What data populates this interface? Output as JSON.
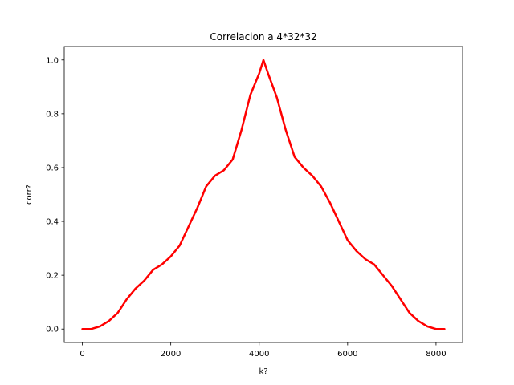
{
  "chart_data": {
    "type": "line",
    "title": "Correlacion a 4*32*32",
    "xlabel": "k?",
    "ylabel": "corr?",
    "xlim": [
      -410,
      8601
    ],
    "ylim": [
      -0.05,
      1.05
    ],
    "xticks": [
      0,
      2000,
      4000,
      6000,
      8000
    ],
    "xtick_labels": [
      "0",
      "2000",
      "4000",
      "6000",
      "8000"
    ],
    "yticks": [
      0.0,
      0.2,
      0.4,
      0.6,
      0.8,
      1.0
    ],
    "ytick_labels": [
      "0.0",
      "0.2",
      "0.4",
      "0.6",
      "0.8",
      "1.0"
    ],
    "grid": false,
    "series": [
      {
        "color": "#ff0000",
        "x": [
          0,
          200,
          400,
          600,
          800,
          1000,
          1200,
          1400,
          1600,
          1800,
          2000,
          2200,
          2400,
          2600,
          2800,
          3000,
          3200,
          3400,
          3600,
          3800,
          4000,
          4096,
          4200,
          4400,
          4600,
          4800,
          5000,
          5200,
          5400,
          5600,
          5800,
          6000,
          6200,
          6400,
          6600,
          6800,
          7000,
          7200,
          7400,
          7600,
          7800,
          8000,
          8191
        ],
        "y": [
          0.0,
          0.0,
          0.01,
          0.03,
          0.06,
          0.11,
          0.15,
          0.18,
          0.22,
          0.24,
          0.27,
          0.31,
          0.38,
          0.45,
          0.53,
          0.57,
          0.59,
          0.63,
          0.74,
          0.87,
          0.95,
          1.0,
          0.95,
          0.86,
          0.74,
          0.64,
          0.6,
          0.57,
          0.53,
          0.47,
          0.4,
          0.33,
          0.29,
          0.26,
          0.24,
          0.2,
          0.16,
          0.11,
          0.06,
          0.03,
          0.01,
          0.0,
          0.0
        ]
      }
    ]
  }
}
